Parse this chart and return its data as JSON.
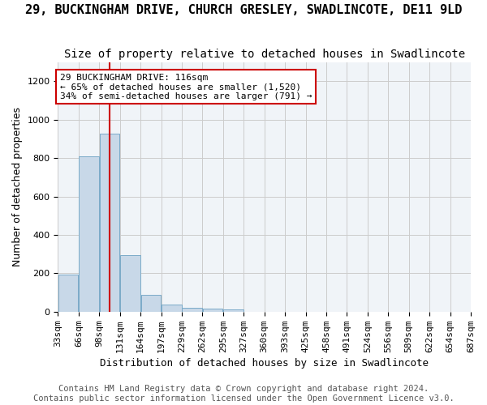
{
  "title": "29, BUCKINGHAM DRIVE, CHURCH GRESLEY, SWADLINCOTE, DE11 9LD",
  "subtitle": "Size of property relative to detached houses in Swadlincote",
  "xlabel": "Distribution of detached houses by size in Swadlincote",
  "ylabel": "Number of detached properties",
  "bar_color": "#c8d8e8",
  "bar_edge_color": "#7aaac8",
  "vline_x": 116,
  "vline_color": "#cc0000",
  "annotation_text": "29 BUCKINGHAM DRIVE: 116sqm\n← 65% of detached houses are smaller (1,520)\n34% of semi-detached houses are larger (791) →",
  "annotation_box_color": "white",
  "annotation_box_edge": "#cc0000",
  "bins": [
    33,
    66,
    99,
    132,
    165,
    198,
    231,
    264,
    297,
    330,
    363,
    396,
    429,
    462,
    495,
    528,
    561,
    594,
    627,
    660,
    693
  ],
  "bin_labels": [
    "33sqm",
    "66sqm",
    "98sqm",
    "131sqm",
    "164sqm",
    "197sqm",
    "229sqm",
    "262sqm",
    "295sqm",
    "327sqm",
    "360sqm",
    "393sqm",
    "425sqm",
    "458sqm",
    "491sqm",
    "524sqm",
    "556sqm",
    "589sqm",
    "622sqm",
    "654sqm",
    "687sqm"
  ],
  "values": [
    195,
    810,
    925,
    295,
    88,
    37,
    20,
    18,
    13,
    0,
    0,
    0,
    0,
    0,
    0,
    0,
    0,
    0,
    0,
    0
  ],
  "ylim": [
    0,
    1300
  ],
  "yticks": [
    0,
    200,
    400,
    600,
    800,
    1000,
    1200
  ],
  "footer_line1": "Contains HM Land Registry data © Crown copyright and database right 2024.",
  "footer_line2": "Contains public sector information licensed under the Open Government Licence v3.0.",
  "background_color": "#f0f4f8",
  "grid_color": "#cccccc",
  "title_fontsize": 11,
  "subtitle_fontsize": 10,
  "axis_fontsize": 9,
  "tick_fontsize": 8,
  "footer_fontsize": 7.5
}
